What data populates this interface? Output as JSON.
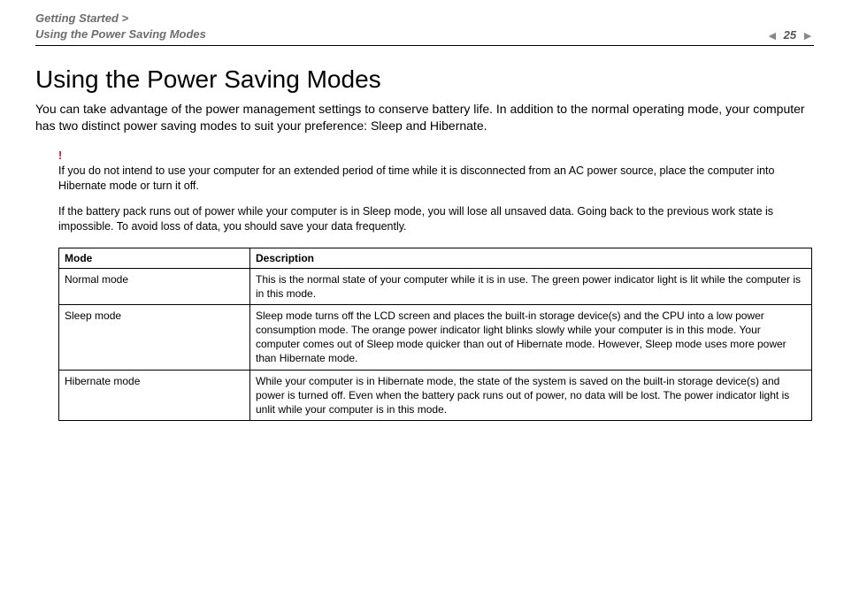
{
  "header": {
    "breadcrumb_line1": "Getting Started >",
    "breadcrumb_line2": "Using the Power Saving Modes",
    "page_number": "25"
  },
  "content": {
    "title": "Using the Power Saving Modes",
    "intro": "You can take advantage of the power management settings to conserve battery life. In addition to the normal operating mode, your computer has two distinct power saving modes to suit your preference: Sleep and Hibernate.",
    "warning_marker": "!",
    "warning_text": "If you do not intend to use your computer for an extended period of time while it is disconnected from an AC power source, place the computer into Hibernate mode or turn it off.",
    "note_text": "If the battery pack runs out of power while your computer is in Sleep mode, you will lose all unsaved data. Going back to the previous work state is impossible. To avoid loss of data, you should save your data frequently."
  },
  "table": {
    "columns": [
      "Mode",
      "Description"
    ],
    "rows": [
      [
        "Normal mode",
        "This is the normal state of your computer while it is in use. The green power indicator light is lit while the computer is in this mode."
      ],
      [
        "Sleep mode",
        "Sleep mode turns off the LCD screen and places the built-in storage device(s) and the CPU into a low power consumption mode. The orange power indicator light blinks slowly while your computer is in this mode. Your computer comes out of Sleep mode quicker than out of Hibernate mode. However, Sleep mode uses more power than Hibernate mode."
      ],
      [
        "Hibernate mode",
        "While your computer is in Hibernate mode, the state of the system is saved on the built-in storage device(s) and power is turned off. Even when the battery pack runs out of power, no data will be lost. The power indicator light is unlit while your computer is in this mode."
      ]
    ]
  },
  "colors": {
    "text": "#000000",
    "muted": "#6d6d6d",
    "accent_red": "#c8102e",
    "border": "#000000",
    "background": "#ffffff"
  }
}
